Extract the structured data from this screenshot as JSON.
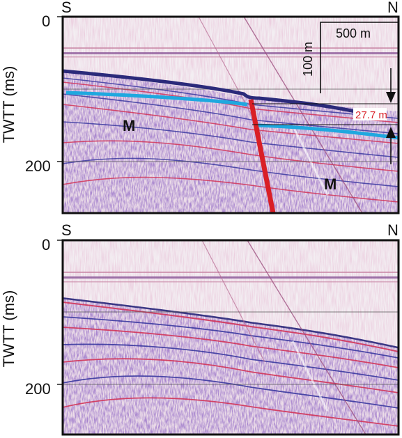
{
  "panels": [
    {
      "id": "top",
      "left_label": "S",
      "right_label": "N",
      "y_axis": {
        "label": "TWTT (ms)",
        "ticks": [
          "0",
          "200"
        ]
      },
      "scale_bar": {
        "horizontal": "500 m",
        "vertical": "100 m"
      },
      "measurement": "27.7 m",
      "unit_labels": [
        "M",
        "M"
      ],
      "interpreted": true
    },
    {
      "id": "bottom",
      "left_label": "S",
      "right_label": "N",
      "y_axis": {
        "label": "TWTT (ms)",
        "ticks": [
          "0",
          "200"
        ]
      },
      "interpreted": false
    }
  ],
  "colors": {
    "horizon_dark": "#2b2a7a",
    "horizon_light": "#1fa8df",
    "fault": "#d91f26",
    "measurement_text": "#d91f26",
    "seismic_red": "#d2365a",
    "seismic_blue": "#3b3aa0"
  }
}
